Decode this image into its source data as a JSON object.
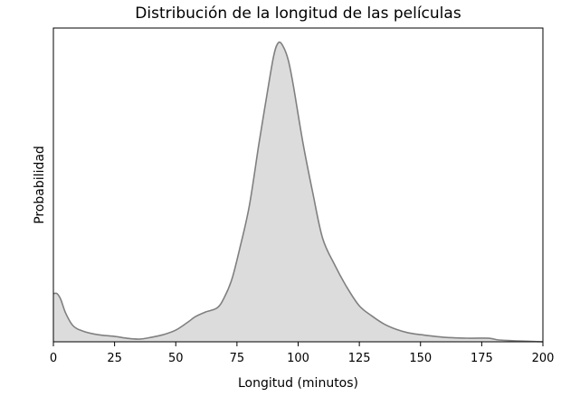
{
  "chart_data": {
    "type": "area",
    "title": "Distribución de la longitud de las películas",
    "xlabel": "Longitud (minutos)",
    "ylabel": "Probabilidad",
    "xlim": [
      0,
      200
    ],
    "ylim": [
      0,
      1
    ],
    "y_ticks_shown": false,
    "grid": false,
    "x_ticks": [
      0,
      25,
      50,
      75,
      100,
      125,
      150,
      175,
      200
    ],
    "fill_color": "#dcdcdc",
    "line_color": "#808080",
    "series": [
      {
        "x": [
          0,
          1.5,
          3,
          5,
          8,
          12,
          18,
          25,
          30,
          35,
          40,
          45,
          50,
          55,
          58,
          62,
          67,
          70,
          73,
          76,
          80,
          84,
          87,
          90,
          92,
          94,
          96,
          98,
          102,
          106,
          110,
          115,
          120,
          125,
          130,
          135,
          140,
          145,
          150,
          160,
          170,
          178,
          182,
          190,
          200
        ],
        "y": [
          0.161,
          0.161,
          0.142,
          0.096,
          0.054,
          0.036,
          0.024,
          0.018,
          0.012,
          0.009,
          0.015,
          0.024,
          0.039,
          0.066,
          0.084,
          0.099,
          0.114,
          0.151,
          0.211,
          0.307,
          0.452,
          0.663,
          0.813,
          0.955,
          1.0,
          0.985,
          0.94,
          0.858,
          0.663,
          0.497,
          0.346,
          0.256,
          0.181,
          0.12,
          0.087,
          0.06,
          0.042,
          0.03,
          0.024,
          0.015,
          0.012,
          0.012,
          0.006,
          0.003,
          0.0
        ]
      }
    ]
  }
}
